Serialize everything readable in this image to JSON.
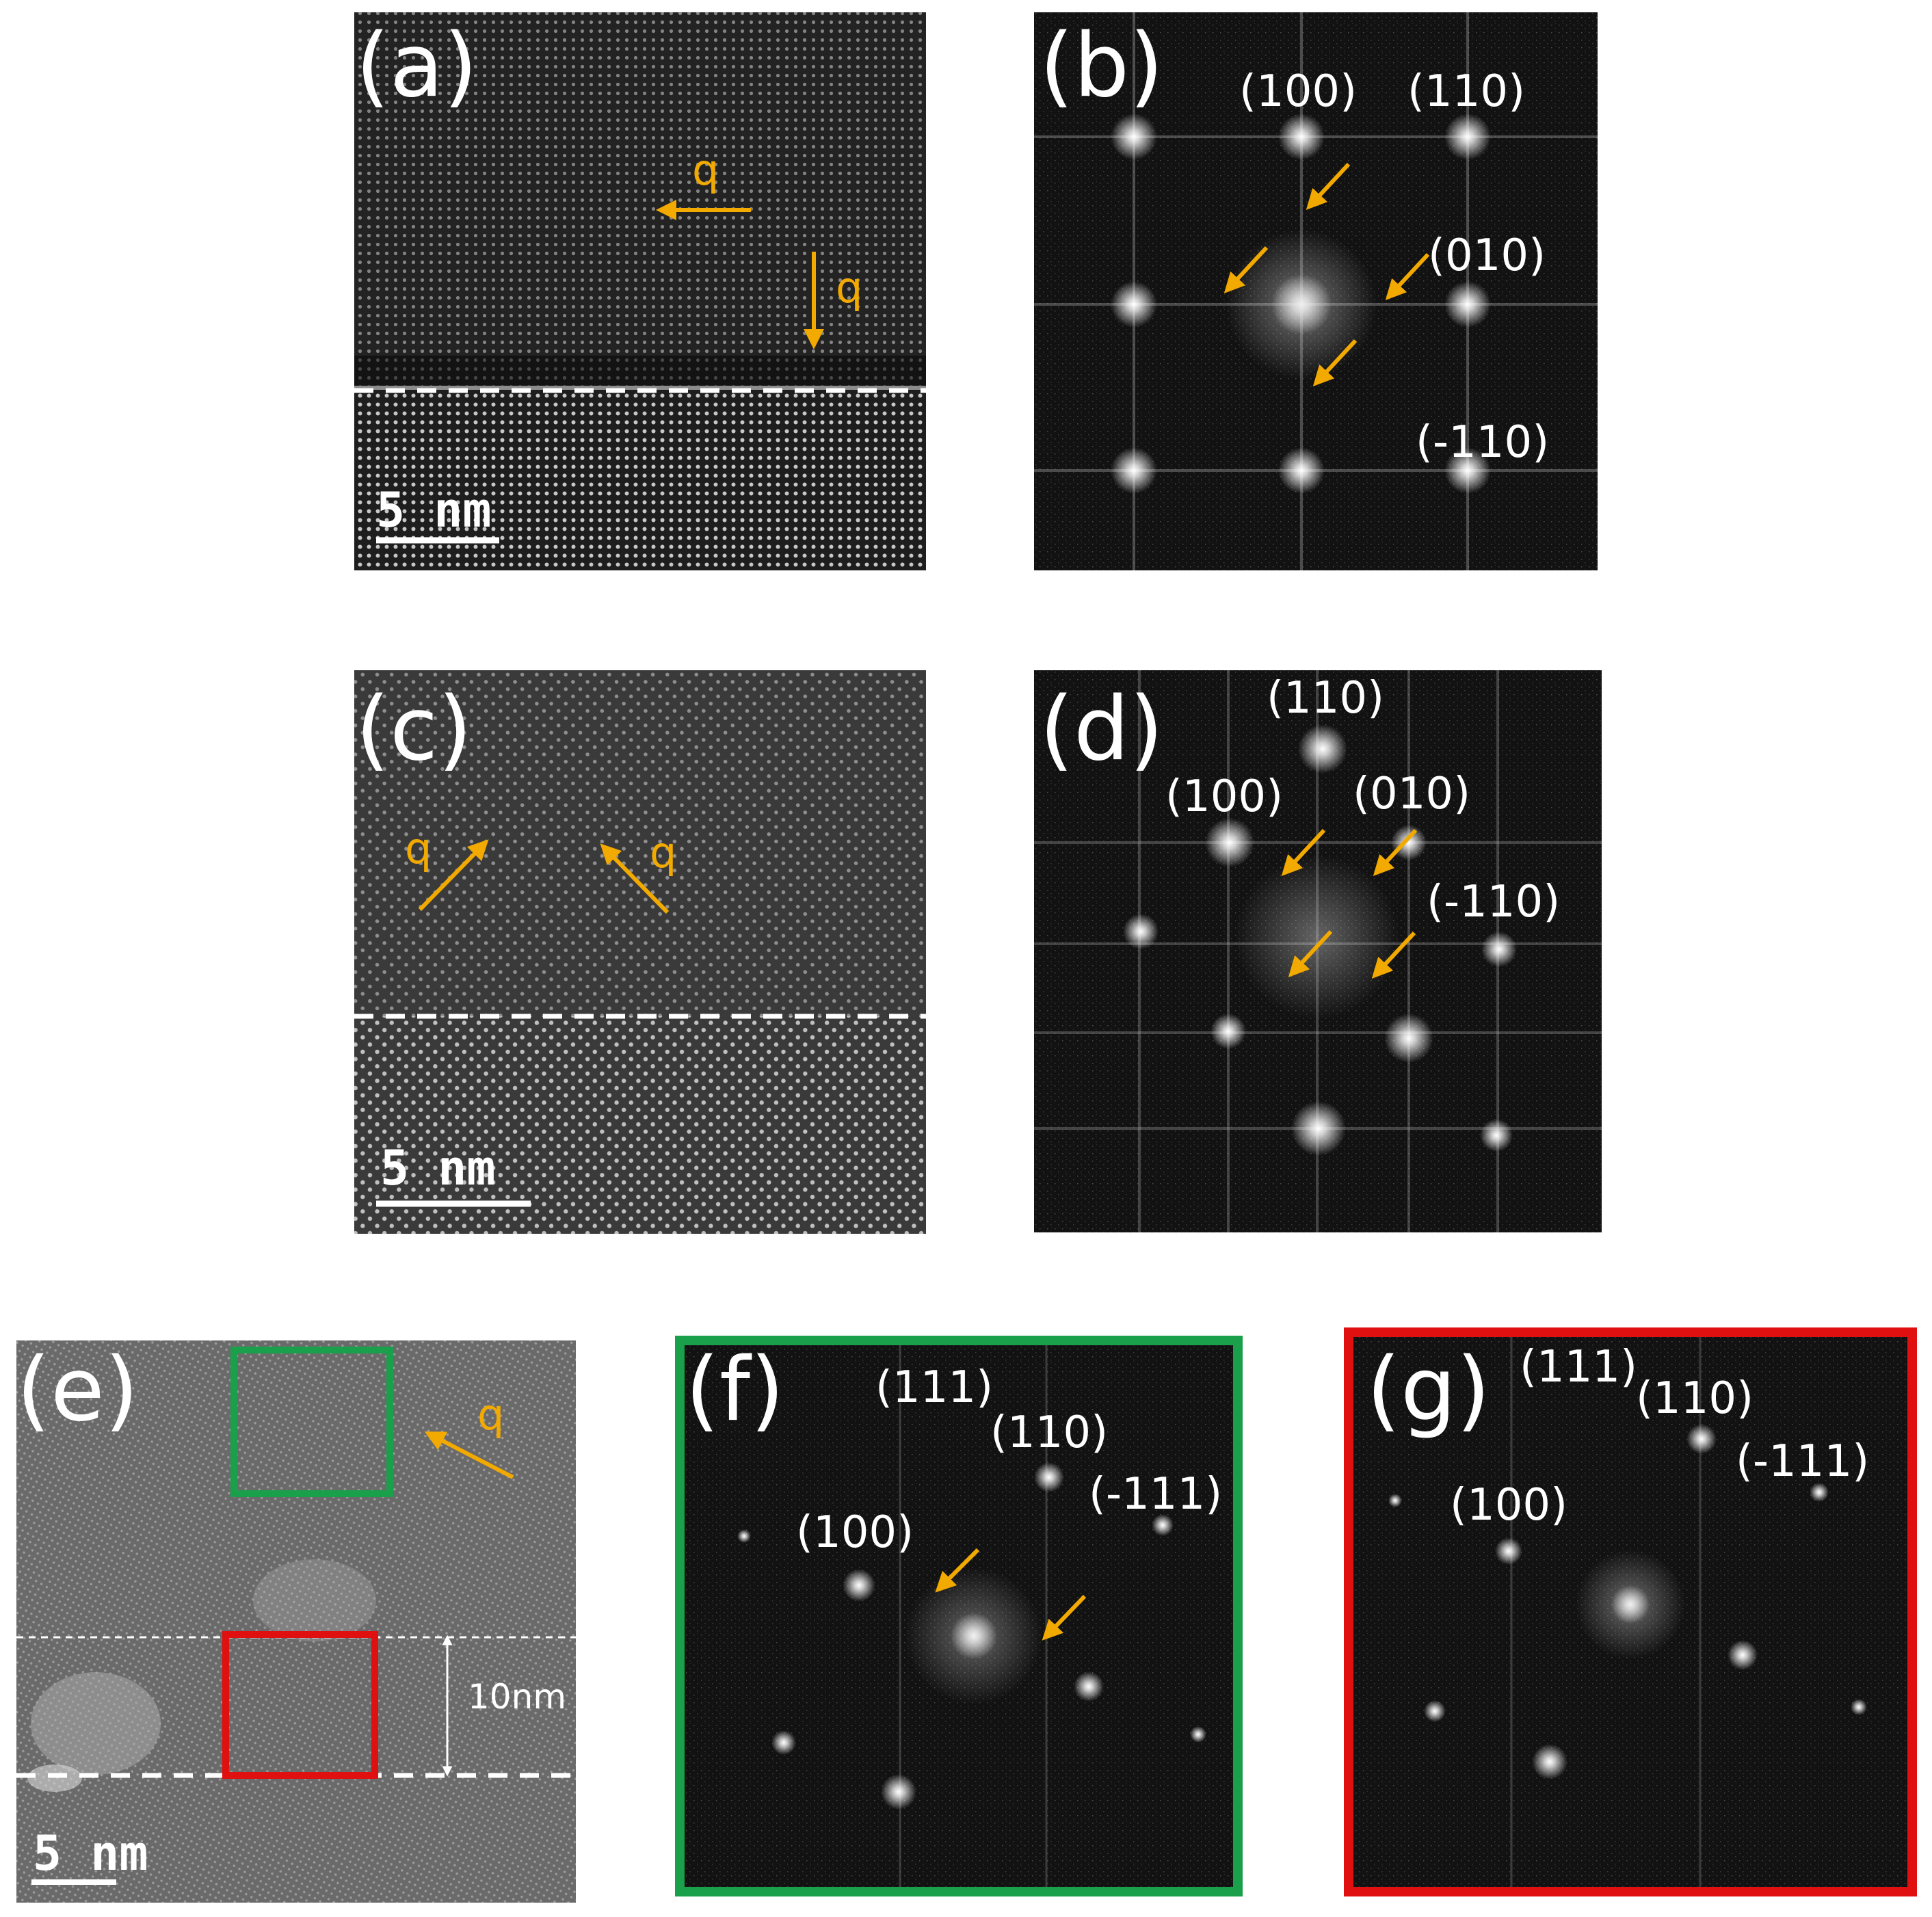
{
  "figure": {
    "panels": [
      {
        "id": "a",
        "label": "(a)",
        "kind": "hrtem",
        "scale_bar": "5 nm",
        "q_labels": [
          "q",
          "q"
        ]
      },
      {
        "id": "b",
        "label": "(b)",
        "kind": "fft",
        "indices": [
          "(100)",
          "(110)",
          "(010)",
          "(-110)"
        ]
      },
      {
        "id": "c",
        "label": "(c)",
        "kind": "hrtem",
        "scale_bar": "5 nm",
        "q_labels": [
          "q",
          "q"
        ]
      },
      {
        "id": "d",
        "label": "(d)",
        "kind": "fft",
        "indices": [
          "(110)",
          "(100)",
          "(010)",
          "(-110)"
        ]
      },
      {
        "id": "e",
        "label": "(e)",
        "kind": "hrtem",
        "scale_bar": "5 nm",
        "q_labels": [
          "q"
        ],
        "distance_label": "10nm"
      },
      {
        "id": "f",
        "label": "(f)",
        "kind": "fft",
        "frame_color": "#1aa04a",
        "indices": [
          "(111)",
          "(110)",
          "(-111)",
          "(100)"
        ]
      },
      {
        "id": "g",
        "label": "(g)",
        "kind": "fft",
        "frame_color": "#e01010",
        "indices": [
          "(111)",
          "(110)",
          "(-111)",
          "(100)"
        ]
      }
    ],
    "colors": {
      "annotation_arrow": "#f2a900",
      "green_box": "#1aa04a",
      "red_box": "#e01010",
      "text": "#ffffff"
    }
  }
}
